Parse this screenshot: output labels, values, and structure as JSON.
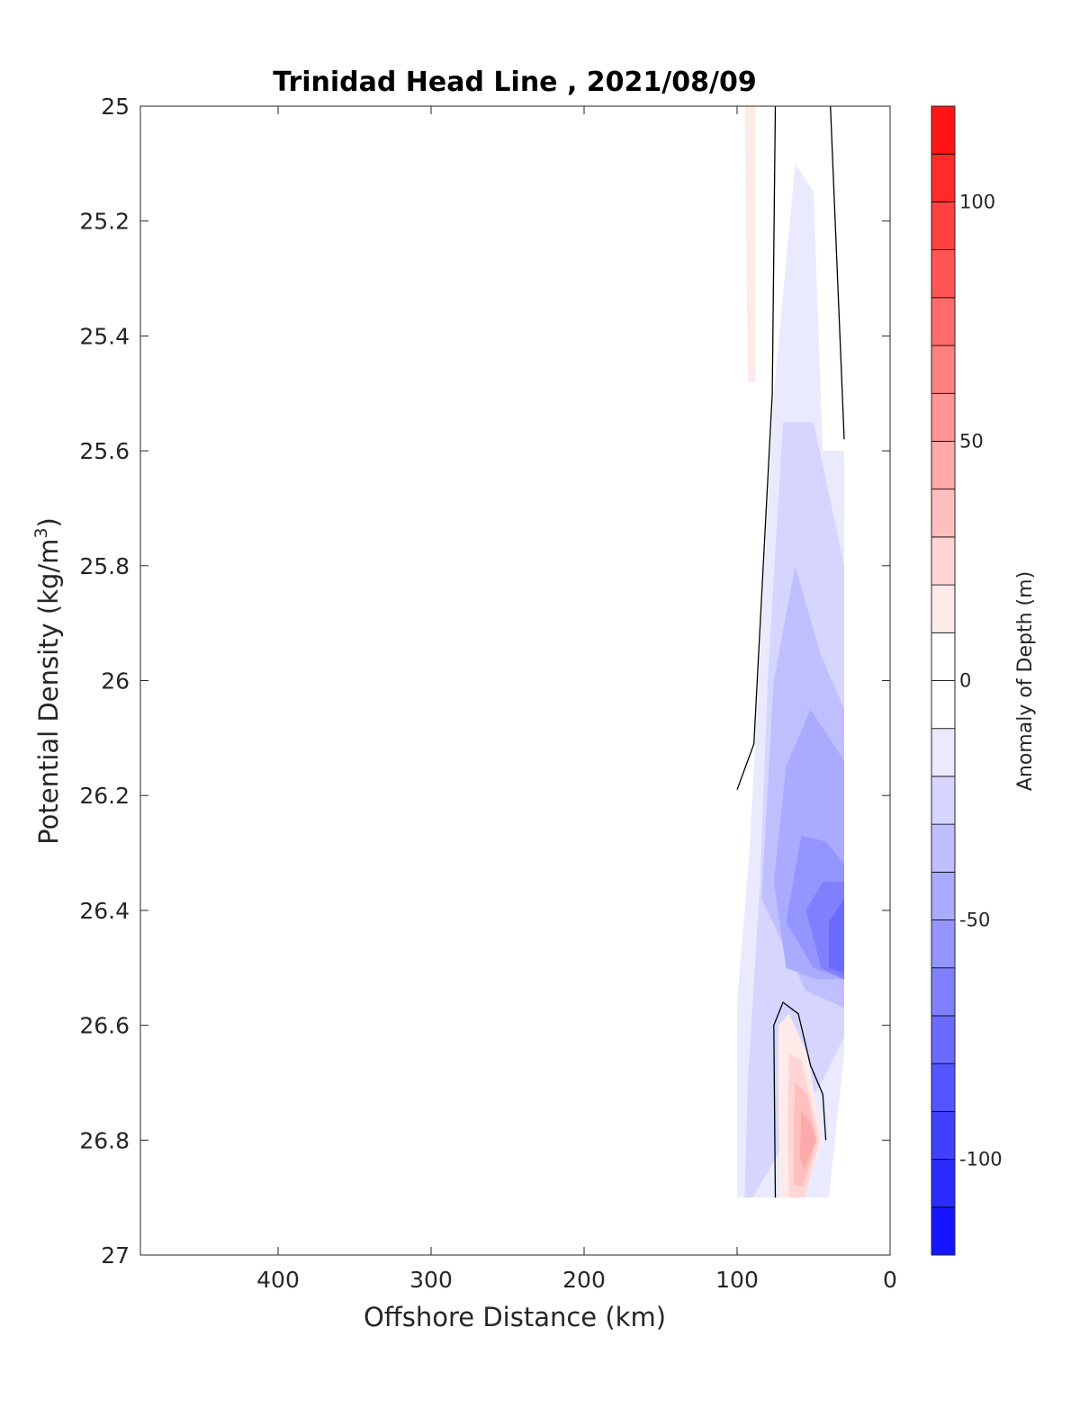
{
  "chart_data": {
    "type": "heatmap",
    "subtype": "filled-contour",
    "title": "Trinidad Head Line , 2021/08/09",
    "xlabel": "Offshore Distance (km)",
    "ylabel": "Potential Density (kg/m",
    "ylabel_sup": "3",
    "ylabel_close": ")",
    "colorbar_label": "Anomaly of Depth (m)",
    "xlim": [
      490,
      0
    ],
    "x_reversed": true,
    "ylim": [
      25,
      27
    ],
    "y_reversed": true,
    "xticks": [
      400,
      300,
      200,
      100,
      0
    ],
    "yticks": [
      25,
      25.2,
      25.4,
      25.6,
      25.8,
      26,
      26.2,
      26.4,
      26.6,
      26.8,
      27
    ],
    "colorbar_range": [
      -120,
      120
    ],
    "colorbar_step": 10,
    "colorbar_ticks": [
      100,
      50,
      0,
      -50,
      -100
    ],
    "colormap": {
      "negative_end": "#0000ff",
      "zero": "#ffffff",
      "positive_end": "#ff0000"
    },
    "grid": false,
    "data_extent": {
      "x": [
        100,
        30
      ],
      "y": [
        25,
        26.9
      ]
    },
    "filled_regions": [
      {
        "level": 10,
        "points": [
          [
            95,
            25
          ],
          [
            88,
            25
          ],
          [
            88,
            25.48
          ],
          [
            93,
            25.48
          ]
        ]
      },
      {
        "level": -10,
        "points": [
          [
            100,
            26.56
          ],
          [
            92,
            26.3
          ],
          [
            86,
            26.0
          ],
          [
            76,
            25.5
          ],
          [
            62,
            25.1
          ],
          [
            50,
            25.15
          ],
          [
            44,
            25.6
          ],
          [
            30,
            25.6
          ],
          [
            30,
            26.65
          ],
          [
            40,
            26.9
          ],
          [
            100,
            26.9
          ]
        ]
      },
      {
        "level": -20,
        "points": [
          [
            85,
            26.35
          ],
          [
            80,
            26.0
          ],
          [
            70,
            25.55
          ],
          [
            50,
            25.55
          ],
          [
            30,
            25.8
          ],
          [
            30,
            26.62
          ],
          [
            45,
            26.7
          ],
          [
            90,
            26.9
          ],
          [
            95,
            26.9
          ],
          [
            93,
            26.7
          ]
        ]
      },
      {
        "level": -30,
        "points": [
          [
            84,
            26.38
          ],
          [
            76,
            26.0
          ],
          [
            62,
            25.8
          ],
          [
            46,
            25.95
          ],
          [
            30,
            26.05
          ],
          [
            30,
            26.57
          ],
          [
            55,
            26.54
          ]
        ]
      },
      {
        "level": -40,
        "points": [
          [
            76,
            26.35
          ],
          [
            68,
            26.15
          ],
          [
            52,
            26.05
          ],
          [
            30,
            26.14
          ],
          [
            30,
            26.52
          ],
          [
            48,
            26.52
          ],
          [
            68,
            26.5
          ]
        ]
      },
      {
        "level": -50,
        "points": [
          [
            68,
            26.42
          ],
          [
            58,
            26.27
          ],
          [
            42,
            26.28
          ],
          [
            30,
            26.32
          ],
          [
            30,
            26.52
          ],
          [
            50,
            26.5
          ]
        ]
      },
      {
        "level": -60,
        "points": [
          [
            55,
            26.4
          ],
          [
            44,
            26.35
          ],
          [
            30,
            26.35
          ],
          [
            30,
            26.52
          ],
          [
            45,
            26.5
          ]
        ]
      },
      {
        "level": -70,
        "points": [
          [
            40,
            26.42
          ],
          [
            30,
            26.38
          ],
          [
            30,
            26.51
          ],
          [
            40,
            26.5
          ]
        ]
      },
      {
        "level": 10,
        "points": [
          [
            73,
            26.6
          ],
          [
            66,
            26.58
          ],
          [
            54,
            26.65
          ],
          [
            44,
            26.8
          ],
          [
            56,
            26.9
          ],
          [
            72,
            26.9
          ],
          [
            73,
            26.75
          ]
        ]
      },
      {
        "level": 20,
        "points": [
          [
            66,
            26.65
          ],
          [
            58,
            26.66
          ],
          [
            50,
            26.75
          ],
          [
            46,
            26.8
          ],
          [
            56,
            26.9
          ],
          [
            66,
            26.9
          ],
          [
            67,
            26.78
          ]
        ]
      },
      {
        "level": 30,
        "points": [
          [
            62,
            26.7
          ],
          [
            54,
            26.72
          ],
          [
            48,
            26.8
          ],
          [
            57,
            26.88
          ],
          [
            63,
            26.88
          ],
          [
            63,
            26.78
          ]
        ]
      },
      {
        "level": 40,
        "points": [
          [
            58,
            26.75
          ],
          [
            52,
            26.77
          ],
          [
            48,
            26.8
          ],
          [
            56,
            26.85
          ],
          [
            59,
            26.83
          ]
        ]
      }
    ],
    "contour_lines": [
      {
        "level": 0,
        "points": [
          [
            75,
            25
          ],
          [
            77,
            25.5
          ],
          [
            89,
            26.11
          ],
          [
            100,
            26.19
          ]
        ]
      },
      {
        "level": 0,
        "points": [
          [
            39,
            25
          ],
          [
            30,
            25.58
          ]
        ]
      },
      {
        "level": 0,
        "points": [
          [
            75,
            26.9
          ],
          [
            76,
            26.6
          ],
          [
            70,
            26.56
          ],
          [
            60,
            26.58
          ],
          [
            52,
            26.67
          ],
          [
            44,
            26.72
          ],
          [
            42,
            26.8
          ]
        ]
      }
    ]
  }
}
